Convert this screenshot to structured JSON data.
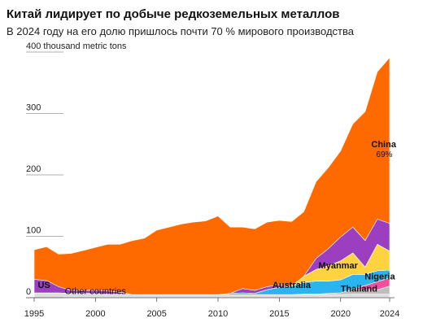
{
  "chart_data": {
    "type": "stacked_area",
    "title": "Китай лидирует по добыче редкоземельных металлов",
    "subtitle": "В 2024 году на его долю пришлось почти 70 % мирового производства",
    "annotation": "69%",
    "x": [
      1995,
      1996,
      1997,
      1998,
      1999,
      2000,
      2001,
      2002,
      2003,
      2004,
      2005,
      2006,
      2007,
      2008,
      2009,
      2010,
      2011,
      2012,
      2013,
      2014,
      2015,
      2016,
      2017,
      2018,
      2019,
      2020,
      2021,
      2022,
      2023,
      2024
    ],
    "xlim": [
      1995,
      2024
    ],
    "xticks": [
      1995,
      2000,
      2005,
      2010,
      2015,
      2020,
      2024
    ],
    "ylim": [
      0,
      400
    ],
    "yticks": [
      0,
      100,
      200,
      300,
      {
        "value": 400,
        "label": "400 thousand metric tons"
      }
    ],
    "series": [
      {
        "name": "Other countries",
        "color": "#dedede",
        "values": [
          8,
          8,
          8,
          7,
          7,
          7,
          6,
          6,
          5,
          5,
          5,
          5,
          5,
          5,
          5,
          5,
          5,
          5,
          5,
          5,
          5,
          5,
          5,
          5,
          5,
          5,
          6,
          6,
          6,
          6
        ]
      },
      {
        "name": "Thailand",
        "color": "#bdbdbd",
        "values": [
          0,
          0,
          0,
          0,
          0,
          0,
          0,
          0,
          0,
          0,
          0,
          0,
          0,
          0,
          0,
          0,
          0,
          0,
          0,
          0,
          0,
          0,
          1,
          1,
          2,
          3,
          8,
          7,
          7,
          13
        ]
      },
      {
        "name": "Nigeria",
        "color": "#f0509e",
        "values": [
          0,
          0,
          0,
          0,
          0,
          0,
          0,
          0,
          0,
          0,
          0,
          0,
          0,
          0,
          0,
          0,
          0,
          0,
          0,
          0,
          0,
          0,
          0,
          0,
          0,
          0,
          0,
          7,
          13,
          13
        ]
      },
      {
        "name": "Australia",
        "color": "#2bb5f0",
        "values": [
          0,
          0,
          0,
          0,
          0,
          0,
          0,
          0,
          0,
          0,
          0,
          0,
          0,
          0,
          0,
          0,
          2,
          3,
          2,
          8,
          12,
          14,
          19,
          21,
          20,
          21,
          24,
          18,
          18,
          13
        ]
      },
      {
        "name": "Myanmar",
        "color": "#ffd23f",
        "values": [
          0,
          0,
          0,
          0,
          0,
          0,
          0,
          0,
          0,
          0,
          0,
          0,
          0,
          0,
          0,
          0,
          0,
          0,
          0,
          0,
          0,
          0,
          10,
          19,
          25,
          31,
          35,
          12,
          43,
          31
        ]
      },
      {
        "name": "US",
        "color": "#9b3fc0",
        "values": [
          22,
          20,
          10,
          5,
          5,
          5,
          5,
          3,
          0,
          0,
          0,
          0,
          0,
          0,
          0,
          0,
          0,
          7,
          5,
          5,
          4,
          0,
          0,
          18,
          28,
          39,
          42,
          43,
          41,
          45
        ]
      },
      {
        "name": "China",
        "color": "#ff6a00",
        "values": [
          48,
          55,
          53,
          60,
          65,
          70,
          76,
          78,
          88,
          92,
          105,
          110,
          115,
          118,
          120,
          128,
          108,
          100,
          100,
          105,
          105,
          105,
          105,
          125,
          132,
          140,
          168,
          210,
          240,
          270
        ]
      }
    ]
  }
}
